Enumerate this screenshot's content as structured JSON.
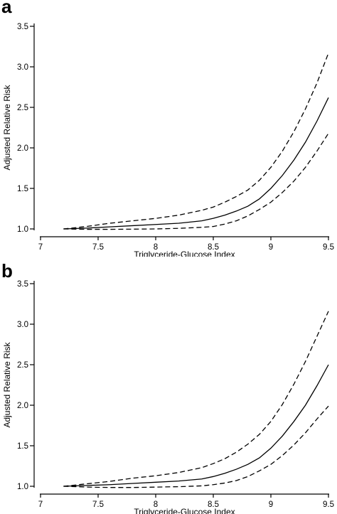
{
  "chart_data": [
    {
      "panel_label": "a",
      "type": "line",
      "xlabel": "Triglyceride-Glucose Index",
      "ylabel": "Adjusted Relative Risk",
      "xlim": [
        7,
        9.5
      ],
      "ylim": [
        1.0,
        3.5
      ],
      "xticks": [
        7,
        7.5,
        8,
        8.5,
        9,
        9.5
      ],
      "xtick_labels": [
        "7",
        "7.5",
        "8",
        "8.5",
        "9",
        "9.5"
      ],
      "yticks": [
        1.0,
        1.5,
        2.0,
        2.5,
        3.0,
        3.5
      ],
      "ytick_labels": [
        "1.0",
        "1.5",
        "2.0",
        "2.5",
        "3.0",
        "3.5"
      ],
      "grid": false,
      "series": [
        {
          "style": "solid",
          "x": [
            7.2,
            7.4,
            7.6,
            7.8,
            8.0,
            8.2,
            8.4,
            8.5,
            8.6,
            8.7,
            8.8,
            8.9,
            9.0,
            9.1,
            9.2,
            9.3,
            9.4,
            9.5
          ],
          "y": [
            1.0,
            1.01,
            1.025,
            1.04,
            1.055,
            1.07,
            1.1,
            1.13,
            1.17,
            1.22,
            1.28,
            1.37,
            1.5,
            1.66,
            1.85,
            2.07,
            2.33,
            2.62
          ]
        },
        {
          "style": "dashed",
          "x": [
            7.2,
            7.4,
            7.6,
            7.8,
            8.0,
            8.2,
            8.4,
            8.5,
            8.6,
            8.7,
            8.8,
            8.9,
            9.0,
            9.1,
            9.2,
            9.3,
            9.4,
            9.5
          ],
          "y": [
            1.0,
            1.03,
            1.07,
            1.1,
            1.13,
            1.17,
            1.23,
            1.27,
            1.33,
            1.4,
            1.48,
            1.6,
            1.76,
            1.96,
            2.2,
            2.48,
            2.8,
            3.17
          ]
        },
        {
          "style": "dashed",
          "x": [
            7.2,
            7.4,
            7.6,
            7.8,
            8.0,
            8.2,
            8.4,
            8.5,
            8.6,
            8.7,
            8.8,
            8.9,
            9.0,
            9.1,
            9.2,
            9.3,
            9.4,
            9.5
          ],
          "y": [
            1.0,
            0.995,
            0.995,
            0.997,
            1.0,
            1.007,
            1.02,
            1.03,
            1.06,
            1.1,
            1.16,
            1.24,
            1.33,
            1.45,
            1.59,
            1.76,
            1.96,
            2.18
          ]
        }
      ]
    },
    {
      "panel_label": "b",
      "type": "line",
      "xlabel": "Triglyceride-Glucose Index",
      "ylabel": "Adjusted Relative Risk",
      "xlim": [
        7,
        9.5
      ],
      "ylim": [
        1.0,
        3.5
      ],
      "xticks": [
        7,
        7.5,
        8,
        8.5,
        9,
        9.5
      ],
      "xtick_labels": [
        "7",
        "7.5",
        "8",
        "8.5",
        "9",
        "9.5"
      ],
      "yticks": [
        1.0,
        1.5,
        2.0,
        2.5,
        3.0,
        3.5
      ],
      "ytick_labels": [
        "1.0",
        "1.5",
        "2.0",
        "2.5",
        "3.0",
        "3.5"
      ],
      "grid": false,
      "series": [
        {
          "style": "solid",
          "x": [
            7.2,
            7.4,
            7.6,
            7.8,
            8.0,
            8.2,
            8.4,
            8.5,
            8.6,
            8.7,
            8.8,
            8.9,
            9.0,
            9.1,
            9.2,
            9.3,
            9.4,
            9.5
          ],
          "y": [
            1.0,
            1.01,
            1.02,
            1.035,
            1.05,
            1.065,
            1.09,
            1.12,
            1.16,
            1.21,
            1.27,
            1.35,
            1.47,
            1.62,
            1.8,
            2.0,
            2.24,
            2.5
          ]
        },
        {
          "style": "dashed",
          "x": [
            7.2,
            7.4,
            7.6,
            7.8,
            8.0,
            8.2,
            8.4,
            8.5,
            8.6,
            8.7,
            8.8,
            8.9,
            9.0,
            9.1,
            9.2,
            9.3,
            9.4,
            9.5
          ],
          "y": [
            1.0,
            1.03,
            1.06,
            1.1,
            1.13,
            1.17,
            1.23,
            1.28,
            1.34,
            1.42,
            1.52,
            1.64,
            1.8,
            2.01,
            2.26,
            2.54,
            2.85,
            3.16
          ]
        },
        {
          "style": "dashed",
          "x": [
            7.2,
            7.4,
            7.6,
            7.8,
            8.0,
            8.2,
            8.4,
            8.5,
            8.6,
            8.7,
            8.8,
            8.9,
            9.0,
            9.1,
            9.2,
            9.3,
            9.4,
            9.5
          ],
          "y": [
            1.0,
            0.99,
            0.985,
            0.985,
            0.99,
            0.995,
            1.005,
            1.02,
            1.04,
            1.07,
            1.12,
            1.19,
            1.27,
            1.38,
            1.51,
            1.66,
            1.83,
            1.99
          ]
        }
      ]
    }
  ]
}
